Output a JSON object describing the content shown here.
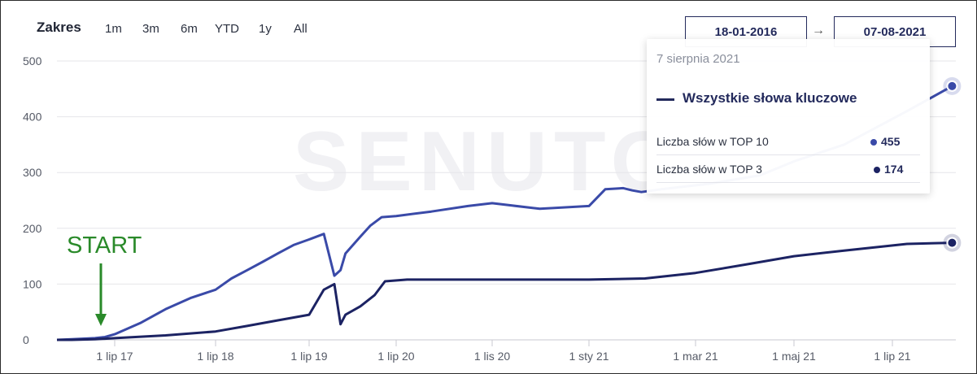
{
  "controls": {
    "range_label": "Zakres",
    "range_buttons": [
      "1m",
      "3m",
      "6m",
      "YTD",
      "1y",
      "All"
    ],
    "date_from": "18-01-2016",
    "date_to": "07-08-2021",
    "arrow": "→"
  },
  "watermark": "SENUTO",
  "annotation": {
    "text": "START",
    "color": "#2a8a2a"
  },
  "tooltip": {
    "date": "7 sierpnia 2021",
    "series_name": "Wszystkie słowa kluczowe",
    "rows": [
      {
        "label": "Liczba słów w TOP 10",
        "value": "455",
        "dot_color": "#3a4aa8"
      },
      {
        "label": "Liczba słów w TOP 3",
        "value": "174",
        "dot_color": "#1c2363"
      }
    ]
  },
  "colors": {
    "top10": "#3a4aa8",
    "top3": "#1c2363",
    "grid": "#e6e6ea",
    "annotation": "#2a8a2a"
  },
  "chart_data": {
    "type": "line",
    "title": "",
    "xlabel": "",
    "ylabel": "",
    "ylim": [
      0,
      500
    ],
    "y_ticks": [
      0,
      100,
      200,
      300,
      400,
      500
    ],
    "x_ticks": [
      "1 lip 17",
      "1 lip 18",
      "1 lip 19",
      "1 lip 20",
      "1 lis 20",
      "1 sty 21",
      "1 mar 21",
      "1 maj 21",
      "1 lip 21"
    ],
    "grid": true,
    "series": [
      {
        "name": "Liczba słów w TOP 10",
        "color": "#3a4aa8",
        "x": [
          "2016-01-18",
          "2016-06-01",
          "2017-01-01",
          "2017-04-01",
          "2017-07-01",
          "2017-10-01",
          "2018-01-01",
          "2018-04-01",
          "2018-07-01",
          "2018-09-01",
          "2018-11-01",
          "2019-01-01",
          "2019-03-01",
          "2019-05-01",
          "2019-07-01",
          "2019-09-01",
          "2019-10-15",
          "2019-11-10",
          "2019-12-01",
          "2020-02-01",
          "2020-03-15",
          "2020-05-01",
          "2020-07-01",
          "2020-08-15",
          "2020-10-01",
          "2020-11-01",
          "2020-12-01",
          "2021-01-01",
          "2021-01-10",
          "2021-01-20",
          "2021-01-25",
          "2021-01-30",
          "2021-02-10",
          "2021-03-10",
          "2021-04-10",
          "2021-05-01",
          "2021-06-01",
          "2021-07-10",
          "2021-08-07"
        ],
        "values": [
          0,
          1,
          3,
          5,
          10,
          30,
          55,
          75,
          90,
          110,
          125,
          140,
          155,
          170,
          180,
          190,
          115,
          125,
          155,
          185,
          205,
          220,
          222,
          230,
          240,
          245,
          235,
          240,
          270,
          272,
          268,
          265,
          270,
          280,
          295,
          320,
          350,
          410,
          455
        ]
      },
      {
        "name": "Liczba słów w TOP 3",
        "color": "#1c2363",
        "x": [
          "2016-01-18",
          "2016-06-01",
          "2017-01-01",
          "2017-07-01",
          "2018-01-01",
          "2018-07-01",
          "2018-11-01",
          "2019-03-01",
          "2019-07-01",
          "2019-09-01",
          "2019-10-15",
          "2019-11-10",
          "2019-12-01",
          "2020-02-01",
          "2020-04-01",
          "2020-05-15",
          "2020-07-15",
          "2020-09-01",
          "2020-11-01",
          "2021-01-01",
          "2021-02-01",
          "2021-03-01",
          "2021-04-01",
          "2021-05-01",
          "2021-06-01",
          "2021-07-10",
          "2021-08-07"
        ],
        "values": [
          0,
          0,
          1,
          3,
          8,
          15,
          25,
          35,
          45,
          90,
          100,
          28,
          45,
          60,
          80,
          105,
          108,
          108,
          108,
          108,
          110,
          120,
          135,
          150,
          160,
          172,
          174
        ]
      }
    ],
    "tooltip_date": "2021-08-07"
  }
}
